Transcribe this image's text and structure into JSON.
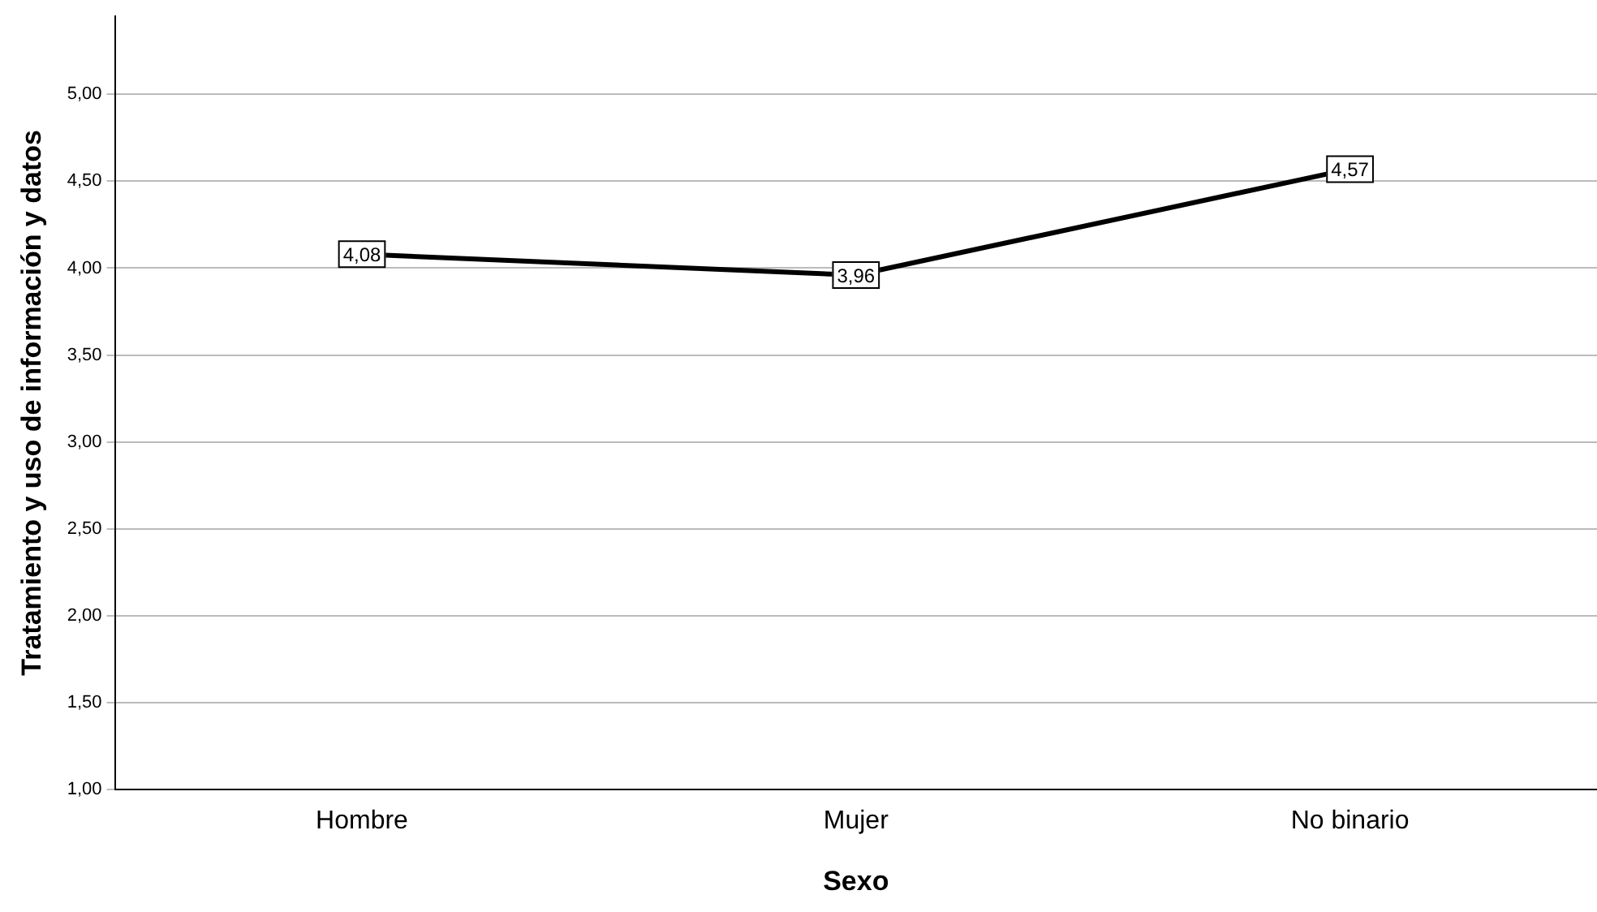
{
  "chart_data": {
    "type": "line",
    "xlabel": "Sexo",
    "ylabel": "Tratamiento y uso de información y datos",
    "categories": [
      "Hombre",
      "Mujer",
      "No binario"
    ],
    "series": [
      {
        "color": "#000000",
        "values": [
          4.08,
          3.96,
          4.57
        ],
        "value_labels": [
          "4,08",
          "3,96",
          "4,57"
        ]
      }
    ],
    "ylim": [
      1,
      5.45
    ],
    "yticks": [
      {
        "value": 1,
        "label": "1,00"
      },
      {
        "value": 1.5,
        "label": "1,50"
      },
      {
        "value": 2,
        "label": "2,00"
      },
      {
        "value": 2.5,
        "label": "2,50"
      },
      {
        "value": 3,
        "label": "3,00"
      },
      {
        "value": 3.5,
        "label": "3,50"
      },
      {
        "value": 4,
        "label": "4,00"
      },
      {
        "value": 4.5,
        "label": "4,50"
      },
      {
        "value": 5,
        "label": "5,00"
      }
    ],
    "grid": "y",
    "marker": "square",
    "line_style": "solid",
    "legend": false
  }
}
